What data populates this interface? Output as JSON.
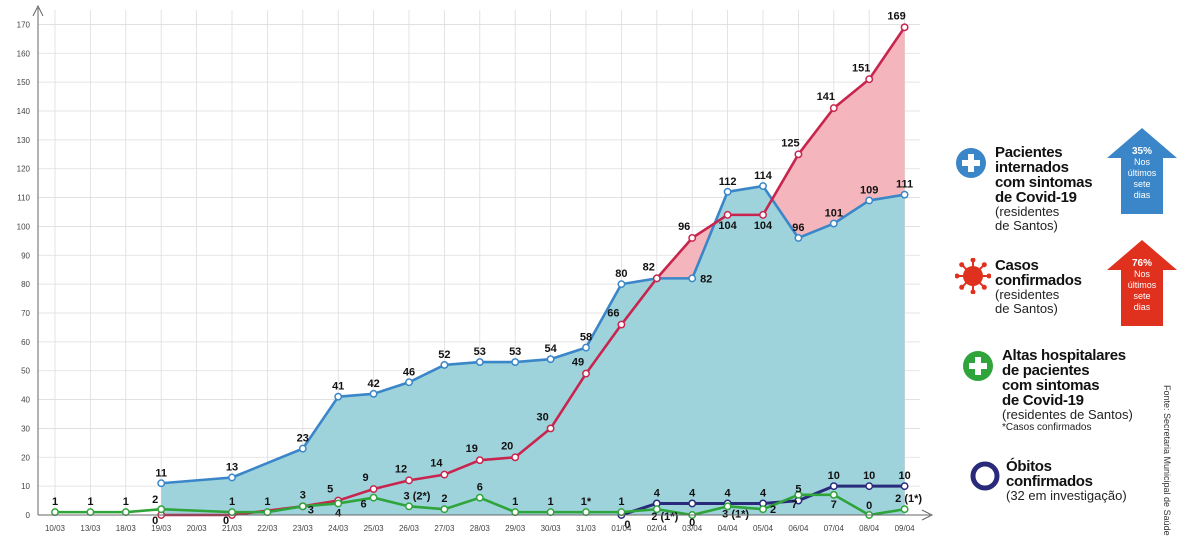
{
  "chart_data": {
    "type": "line",
    "categories": [
      "10/03",
      "13/03",
      "18/03",
      "19/03",
      "20/03",
      "21/03",
      "22/03",
      "23/03",
      "24/03",
      "25/03",
      "26/03",
      "27/03",
      "28/03",
      "29/03",
      "30/03",
      "31/03",
      "01/04",
      "02/04",
      "03/04",
      "04/04",
      "05/04",
      "06/04",
      "07/04",
      "08/04",
      "09/04"
    ],
    "yticks": [
      0,
      10,
      20,
      30,
      40,
      50,
      60,
      70,
      80,
      90,
      100,
      110,
      120,
      130,
      140,
      150,
      160,
      170
    ],
    "ylim": [
      0,
      175
    ],
    "grid": true,
    "series": [
      {
        "name": "Casos confirmados",
        "color": "#c8254e",
        "fill": "#f4b6bc",
        "values": [
          null,
          null,
          null,
          0,
          null,
          0,
          null,
          3,
          5,
          9,
          12,
          14,
          19,
          20,
          30,
          49,
          66,
          82,
          96,
          104,
          104,
          125,
          141,
          151,
          169
        ],
        "labels": [
          "",
          "",
          "",
          "0",
          "",
          "0",
          "",
          "3",
          "5",
          "9",
          "12",
          "14",
          "19",
          "20",
          "30",
          "49",
          "66",
          "82",
          "96",
          "104",
          "104",
          "125",
          "141",
          "151",
          "169"
        ]
      },
      {
        "name": "Pacientes internados com sintomas de Covid-19",
        "color": "#3a86c8",
        "fill": "#9fd3dc",
        "values": [
          null,
          null,
          null,
          11,
          null,
          13,
          null,
          23,
          41,
          42,
          46,
          52,
          53,
          53,
          54,
          58,
          80,
          82,
          82,
          112,
          114,
          96,
          101,
          109,
          111
        ],
        "labels": [
          "",
          "",
          "",
          "11",
          "",
          "13",
          "",
          "23",
          "41",
          "42",
          "46",
          "52",
          "53",
          "53",
          "54",
          "58",
          "80",
          "",
          "82",
          "112",
          "114",
          "96",
          "101",
          "109",
          "111"
        ]
      },
      {
        "name": "Óbitos confirmados",
        "color": "#2a2a7a",
        "values": [
          null,
          null,
          null,
          null,
          null,
          null,
          null,
          null,
          null,
          null,
          null,
          null,
          null,
          null,
          null,
          null,
          0,
          4,
          4,
          4,
          4,
          5,
          10,
          10,
          10
        ],
        "labels": [
          "",
          "",
          "",
          "",
          "",
          "",
          "",
          "",
          "",
          "",
          "",
          "",
          "",
          "",
          "",
          "",
          "0",
          "4",
          "4",
          "4",
          "4",
          "5",
          "10",
          "10",
          "10"
        ]
      },
      {
        "name": "Altas hospitalares de pacientes com sintomas de Covid-19",
        "color": "#2fa43a",
        "values": [
          1,
          1,
          1,
          2,
          null,
          1,
          1,
          3,
          4,
          6,
          3,
          2,
          6,
          1,
          1,
          1,
          1,
          2,
          0,
          3,
          2,
          7,
          7,
          0,
          2
        ],
        "labels": [
          "1",
          "1",
          "1",
          "2",
          "",
          "1",
          "1",
          "3",
          "4",
          "6",
          "3 (2*)",
          "2",
          "6",
          "1",
          "1",
          "1*",
          "1",
          "2 (1*)",
          "0",
          "3 (1*)",
          "2",
          "7",
          "7",
          "0",
          "2 (1*)"
        ]
      }
    ]
  },
  "legend": {
    "internados": {
      "title_lines": [
        "Pacientes",
        "internados",
        "com sintomas",
        "de Covid-19"
      ],
      "sub_lines": [
        "(residentes",
        "de Santos)"
      ],
      "arrow_pct": "35%",
      "arrow_lines": [
        "Nos",
        "últimos",
        "sete",
        "dias"
      ],
      "color": "#3a86c8"
    },
    "casos": {
      "title_lines": [
        "Casos",
        "confirmados"
      ],
      "sub_lines": [
        "(residentes",
        "de Santos)"
      ],
      "arrow_pct": "76%",
      "arrow_lines": [
        "Nos",
        "últimos",
        "sete",
        "dias"
      ],
      "color": "#e0301e"
    },
    "altas": {
      "title_lines": [
        "Altas hospitalares",
        "de pacientes",
        "com sintomas",
        "de Covid-19"
      ],
      "sub_lines": [
        "(residentes de Santos)"
      ],
      "note": "*Casos confirmados",
      "color": "#2fa43a"
    },
    "obitos": {
      "title_lines": [
        "Óbitos",
        "confirmados"
      ],
      "sub_lines": [
        "(32 em investigação)"
      ],
      "color": "#2a2a7a"
    }
  },
  "source": "Fonte: Secretaria Municipal de Saúde"
}
